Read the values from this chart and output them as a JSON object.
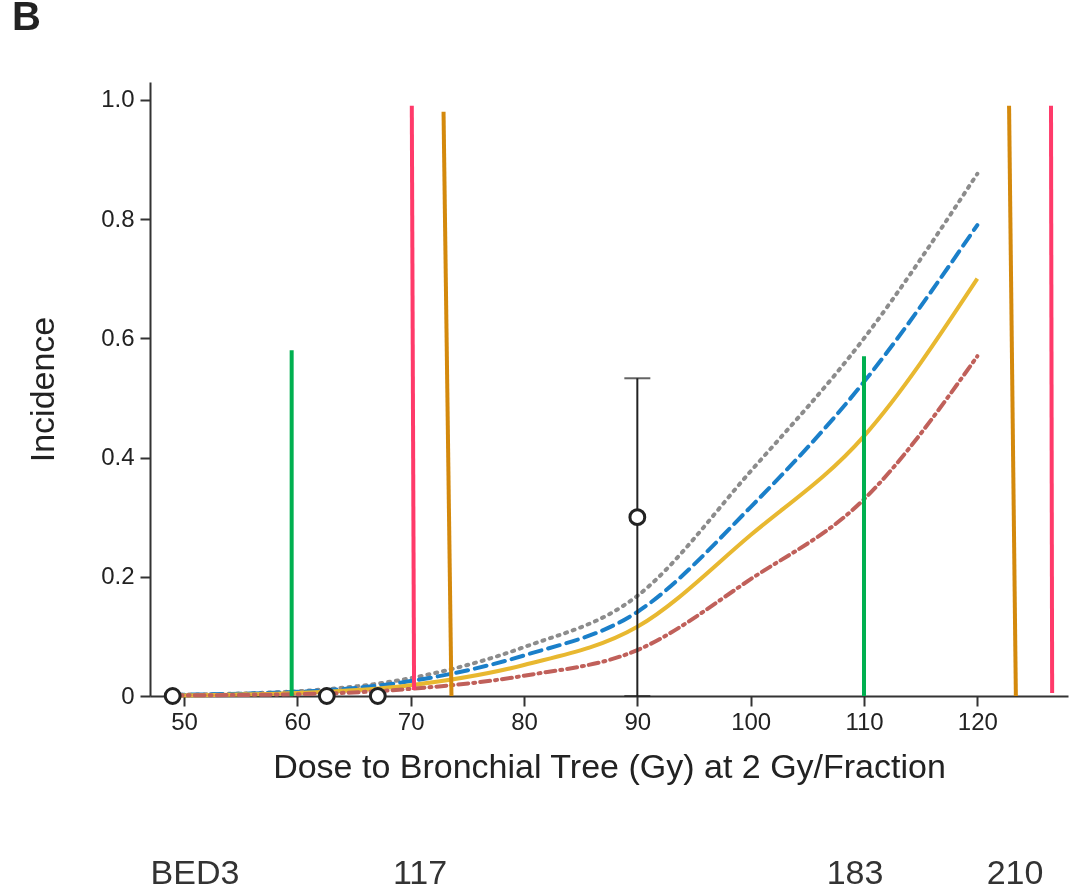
{
  "chart_data": {
    "type": "line",
    "title": "B",
    "xlabel": "Dose to Bronchial Tree (Gy) at 2 Gy/Fraction",
    "ylabel": "Incidence",
    "xlim": [
      47,
      128
    ],
    "xticks": [
      50,
      60,
      70,
      80,
      90,
      100,
      110,
      120
    ],
    "ylim": [
      0,
      1.03
    ],
    "yticks": [
      {
        "value": 0,
        "label": "0"
      },
      0.2,
      0.4,
      0.6,
      0.8,
      {
        "value": 1,
        "label": "1.0"
      }
    ],
    "grid": false,
    "series": [
      {
        "color": "#8c8c8c",
        "line_style": "dotted",
        "x": [
          49,
          60,
          70,
          80,
          90,
          100,
          110,
          120
        ],
        "values": [
          0.002,
          0.008,
          0.03,
          0.082,
          0.168,
          0.377,
          0.6,
          0.876
        ]
      },
      {
        "color": "#1a7fc9",
        "line_style": "dashed",
        "x": [
          49,
          60,
          70,
          80,
          90,
          100,
          110,
          120
        ],
        "values": [
          0.002,
          0.007,
          0.025,
          0.068,
          0.141,
          0.317,
          0.527,
          0.79
        ]
      },
      {
        "color": "#e8b830",
        "line_style": "solid",
        "x": [
          49,
          60,
          70,
          80,
          90,
          100,
          110,
          120
        ],
        "values": [
          0.001,
          0.005,
          0.018,
          0.052,
          0.116,
          0.27,
          0.436,
          0.7
        ]
      },
      {
        "color": "#c0605a",
        "line_style": "dashdot",
        "x": [
          49,
          60,
          70,
          80,
          90,
          100,
          110,
          120
        ],
        "values": [
          0.001,
          0.003,
          0.012,
          0.034,
          0.077,
          0.196,
          0.33,
          0.57
        ]
      },
      {
        "color": "#00b050",
        "line_style": "solid",
        "x": [
          59.5,
          59.5
        ],
        "values": [
          0,
          0.58
        ]
      },
      {
        "color": "#00b050",
        "line_style": "solid",
        "x": [
          110,
          110
        ],
        "values": [
          0,
          0.57
        ]
      },
      {
        "color": "#ff3a6a",
        "line_style": "solid",
        "x": [
          70.1,
          70.3
        ],
        "values": [
          0.99,
          0.01
        ]
      },
      {
        "color": "#d4890c",
        "line_style": "solid",
        "x": [
          72.9,
          73.6
        ],
        "values": [
          0.98,
          0
        ]
      },
      {
        "color": "#d4890c",
        "line_style": "solid",
        "x": [
          122.8,
          123.4
        ],
        "values": [
          0.99,
          0
        ]
      },
      {
        "color": "#ff3a6a",
        "line_style": "solid",
        "x": [
          126.5,
          126.6
        ],
        "values": [
          0.99,
          0.005
        ]
      },
      {
        "type": "scatter",
        "color": "#222222",
        "marker": "circle",
        "x": [
          49,
          62.6,
          67.1,
          90
        ],
        "values": [
          0,
          0,
          0,
          0.3
        ],
        "errors": [
          null,
          null,
          null,
          [
            0,
            0.533
          ]
        ]
      }
    ],
    "annotations": [
      "BED3",
      "117",
      "183",
      "210"
    ]
  }
}
